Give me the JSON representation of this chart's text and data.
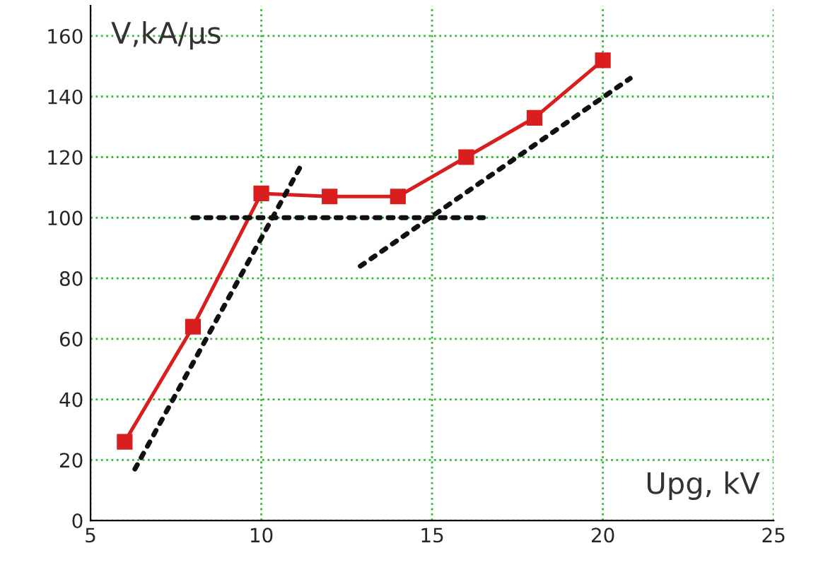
{
  "chart_data": {
    "type": "line",
    "xlabel": "Upg, kV",
    "ylabel": "V,kA/μs",
    "xlim": [
      5,
      25
    ],
    "xticks": [
      5,
      10,
      15,
      20,
      25
    ],
    "ylim": [
      0,
      170
    ],
    "yticks": [
      0,
      20,
      40,
      60,
      80,
      100,
      120,
      140,
      160
    ],
    "grid": true,
    "marker": "square",
    "line_style": "solid",
    "series": [
      {
        "color": "#d81e1e",
        "x": [
          6,
          8,
          10,
          12,
          14,
          16,
          18,
          20
        ],
        "values": [
          26,
          64,
          108,
          107,
          107,
          120,
          133,
          152
        ]
      },
      {
        "color": "#111111",
        "marker": "none",
        "line_style": "dotted",
        "x": [
          6.3,
          11.2
        ],
        "values": [
          17,
          118
        ]
      },
      {
        "color": "#111111",
        "marker": "none",
        "line_style": "dotted",
        "x": [
          8,
          16.5
        ],
        "values": [
          100,
          100
        ]
      },
      {
        "color": "#111111",
        "marker": "none",
        "line_style": "dotted",
        "x": [
          12.9,
          20.8
        ],
        "values": [
          84,
          146
        ]
      }
    ]
  }
}
